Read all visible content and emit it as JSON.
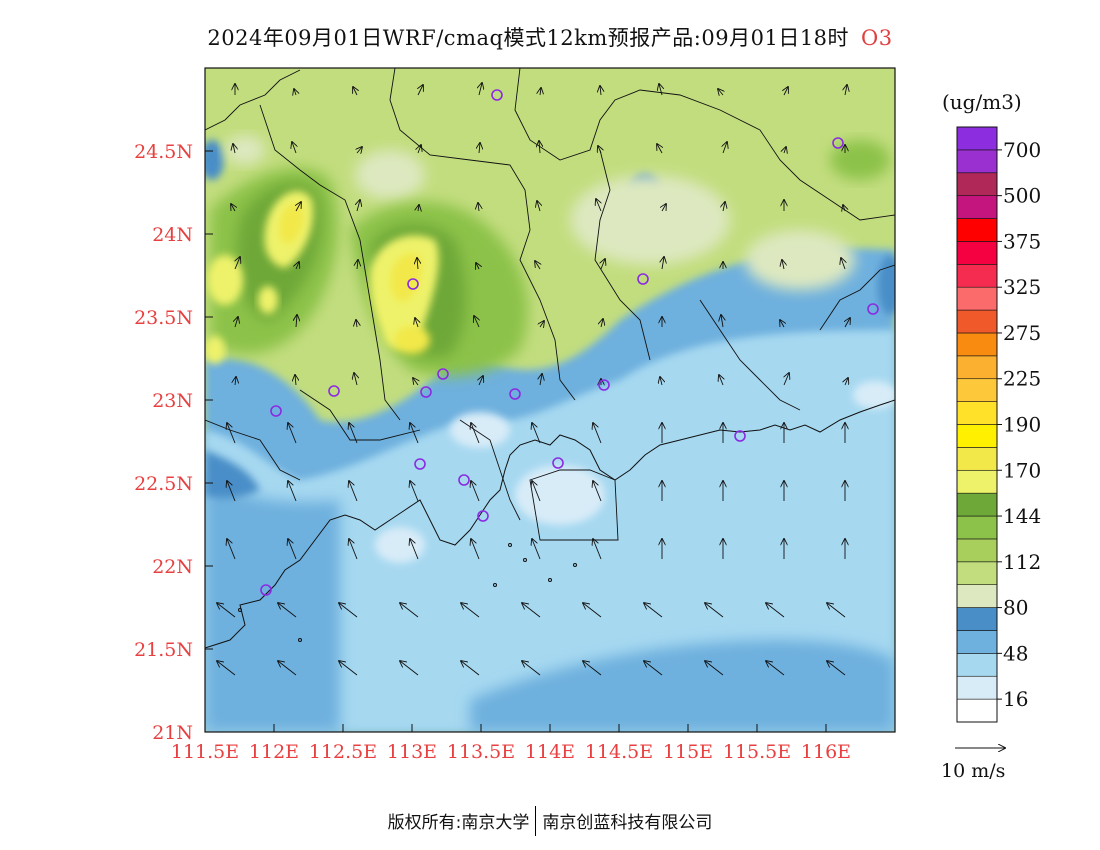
{
  "title": {
    "text": "2024年09月01日WRF/cmaq模式12km预报产品:09月01日18时",
    "variable": "O3"
  },
  "map": {
    "lon_range": [
      111.5,
      116.5
    ],
    "lat_range": [
      21.0,
      25.0
    ],
    "x_ticks": [
      "111.5E",
      "112E",
      "112.5E",
      "113E",
      "113.5E",
      "114E",
      "114.5E",
      "115E",
      "115.5E",
      "116E"
    ],
    "y_ticks": [
      "21N",
      "21.5N",
      "22N",
      "22.5N",
      "23N",
      "23.5N",
      "24N",
      "24.5N"
    ],
    "tick_label_color": "#e84040"
  },
  "colorbar": {
    "unit": "(ug/m3)",
    "labels": [
      "16",
      "48",
      "80",
      "112",
      "144",
      "170",
      "190",
      "225",
      "275",
      "325",
      "375",
      "500",
      "700"
    ],
    "colors": [
      "#ffffff",
      "#d8ecf8",
      "#a6d8f0",
      "#6eb0de",
      "#4a8ec8",
      "#dde8c0",
      "#c2dd7e",
      "#a8cf5c",
      "#8cc24a",
      "#6ea838",
      "#eef26a",
      "#f2e84a",
      "#fff000",
      "#ffe12a",
      "#fdc93a",
      "#fbb030",
      "#f98c10",
      "#f05a2a",
      "#fb6b6b",
      "#f52c50",
      "#f50040",
      "#fe0000",
      "#c4147e",
      "#b02858",
      "#9b30d0",
      "#8c2ee0"
    ]
  },
  "wind": {
    "ref_label": "10 m/s"
  },
  "copyright": {
    "left": "版权所有:南京大学",
    "right": "南京创蓝科技有限公司"
  }
}
